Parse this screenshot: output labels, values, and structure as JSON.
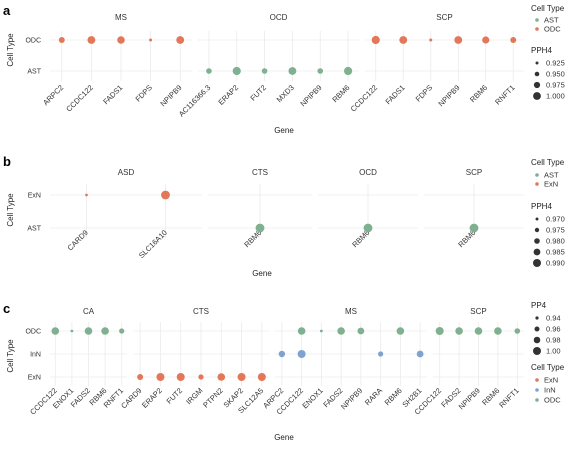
{
  "colors": {
    "AST": "#7fb08f",
    "ODC": "#e2775a",
    "ExN": "#e2775a",
    "InN": "#7ea3d1"
  },
  "chart_data": [
    {
      "panel": "a",
      "type": "scatter",
      "xlabel": "Gene",
      "ylabel": "Cell Type",
      "y_categories": [
        "AST",
        "ODC"
      ],
      "size_legend_title": "PPH4",
      "size_legend_values": [
        "0.925",
        "0.950",
        "0.975",
        "1.000"
      ],
      "size_range": [
        0.9,
        1.0
      ],
      "color_legend_title": "Cell Type",
      "color_legend_entries": [
        "AST",
        "ODC"
      ],
      "facets": [
        {
          "name": "MS",
          "genes": [
            "ARPC2",
            "CCDC122",
            "FADS1",
            "FDPS",
            "NPIPB9"
          ],
          "points": [
            {
              "gene": "ARPC2",
              "cell": "ODC",
              "value": 0.955
            },
            {
              "gene": "CCDC122",
              "cell": "ODC",
              "value": 0.985
            },
            {
              "gene": "FADS1",
              "cell": "ODC",
              "value": 0.98
            },
            {
              "gene": "FDPS",
              "cell": "ODC",
              "value": 0.91
            },
            {
              "gene": "NPIPB9",
              "cell": "ODC",
              "value": 0.985
            }
          ]
        },
        {
          "name": "OCD",
          "genes": [
            "AC116366.3",
            "ERAP2",
            "FUT2",
            "MXD3",
            "NPIPB9",
            "RBM6"
          ],
          "points": [
            {
              "gene": "AC116366.3",
              "cell": "AST",
              "value": 0.95
            },
            {
              "gene": "ERAP2",
              "cell": "AST",
              "value": 0.99
            },
            {
              "gene": "FUT2",
              "cell": "AST",
              "value": 0.95
            },
            {
              "gene": "MXD3",
              "cell": "AST",
              "value": 0.985
            },
            {
              "gene": "NPIPB9",
              "cell": "AST",
              "value": 0.95
            },
            {
              "gene": "RBM6",
              "cell": "AST",
              "value": 0.99
            }
          ]
        },
        {
          "name": "SCP",
          "genes": [
            "CCDC122",
            "FADS1",
            "FDPS",
            "NPIPB9",
            "RBM6",
            "RNFT1"
          ],
          "points": [
            {
              "gene": "CCDC122",
              "cell": "ODC",
              "value": 0.99
            },
            {
              "gene": "FADS1",
              "cell": "ODC",
              "value": 0.985
            },
            {
              "gene": "FDPS",
              "cell": "ODC",
              "value": 0.91
            },
            {
              "gene": "NPIPB9",
              "cell": "ODC",
              "value": 0.985
            },
            {
              "gene": "RBM6",
              "cell": "ODC",
              "value": 0.975
            },
            {
              "gene": "RNFT1",
              "cell": "ODC",
              "value": 0.955
            }
          ]
        }
      ]
    },
    {
      "panel": "b",
      "type": "scatter",
      "xlabel": "Gene",
      "ylabel": "Cell Type",
      "y_categories": [
        "AST",
        "ExN"
      ],
      "size_legend_title": "PPH4",
      "size_legend_values": [
        "0.970",
        "0.975",
        "0.980",
        "0.985",
        "0.990"
      ],
      "size_range": [
        0.965,
        0.99
      ],
      "color_legend_title": "Cell Type",
      "color_legend_entries": [
        "AST",
        "ExN"
      ],
      "facets": [
        {
          "name": "ASD",
          "genes": [
            "CARD9",
            "SLC16A10"
          ],
          "points": [
            {
              "gene": "CARD9",
              "cell": "ExN",
              "value": 0.966
            },
            {
              "gene": "SLC16A10",
              "cell": "ExN",
              "value": 0.99
            }
          ]
        },
        {
          "name": "CTS",
          "genes": [
            "RBM6"
          ],
          "points": [
            {
              "gene": "RBM6",
              "cell": "AST",
              "value": 0.99
            }
          ]
        },
        {
          "name": "OCD",
          "genes": [
            "RBM6"
          ],
          "points": [
            {
              "gene": "RBM6",
              "cell": "AST",
              "value": 0.99
            }
          ]
        },
        {
          "name": "SCP",
          "genes": [
            "RBM6"
          ],
          "points": [
            {
              "gene": "RBM6",
              "cell": "AST",
              "value": 0.99
            }
          ]
        }
      ]
    },
    {
      "panel": "c",
      "type": "scatter",
      "xlabel": "Gene",
      "ylabel": "Cell Type",
      "y_categories": [
        "ExN",
        "InN",
        "ODC"
      ],
      "size_legend_title": "PP4",
      "size_legend_values": [
        "0.94",
        "0.96",
        "0.98",
        "1.00"
      ],
      "size_range": [
        0.92,
        1.0
      ],
      "color_legend_title": "Cell Type",
      "color_legend_entries": [
        "ExN",
        "InN",
        "ODC"
      ],
      "facets": [
        {
          "name": "CA",
          "genes": [
            "CCDC122",
            "ENOX1",
            "FADS2",
            "RBM6",
            "RNFT1"
          ],
          "points": [
            {
              "gene": "CCDC122",
              "cell": "ODC",
              "value": 0.985
            },
            {
              "gene": "ENOX1",
              "cell": "ODC",
              "value": 0.925
            },
            {
              "gene": "FADS2",
              "cell": "ODC",
              "value": 0.985
            },
            {
              "gene": "RBM6",
              "cell": "ODC",
              "value": 0.985
            },
            {
              "gene": "RNFT1",
              "cell": "ODC",
              "value": 0.955
            }
          ]
        },
        {
          "name": "CTS",
          "genes": [
            "CARD9",
            "ERAP2",
            "FUT2",
            "IRGM",
            "PTPN2",
            "SKAP2",
            "SLC12A5"
          ],
          "points": [
            {
              "gene": "CARD9",
              "cell": "ExN",
              "value": 0.965
            },
            {
              "gene": "ERAP2",
              "cell": "ExN",
              "value": 0.99
            },
            {
              "gene": "FUT2",
              "cell": "ExN",
              "value": 0.99
            },
            {
              "gene": "IRGM",
              "cell": "ExN",
              "value": 0.955
            },
            {
              "gene": "PTPN2",
              "cell": "ExN",
              "value": 0.985
            },
            {
              "gene": "SKAP2",
              "cell": "ExN",
              "value": 0.99
            },
            {
              "gene": "SLC12A5",
              "cell": "ExN",
              "value": 0.99
            }
          ]
        },
        {
          "name": "MS",
          "genes": [
            "ARPC2",
            "CCDC122",
            "ENOX1",
            "FADS2",
            "NPIPB9",
            "RARA",
            "RBM6",
            "SH2B1"
          ],
          "points": [
            {
              "gene": "ARPC2",
              "cell": "InN",
              "value": 0.97
            },
            {
              "gene": "CCDC122",
              "cell": "InN",
              "value": 0.99
            },
            {
              "gene": "CCDC122",
              "cell": "ODC",
              "value": 0.985
            },
            {
              "gene": "ENOX1",
              "cell": "ODC",
              "value": 0.925
            },
            {
              "gene": "FADS2",
              "cell": "ODC",
              "value": 0.985
            },
            {
              "gene": "NPIPB9",
              "cell": "ODC",
              "value": 0.975
            },
            {
              "gene": "RARA",
              "cell": "InN",
              "value": 0.955
            },
            {
              "gene": "RBM6",
              "cell": "ODC",
              "value": 0.985
            },
            {
              "gene": "SH2B1",
              "cell": "InN",
              "value": 0.975
            }
          ]
        },
        {
          "name": "SCP",
          "genes": [
            "CCDC122",
            "FADS2",
            "NPIPB9",
            "RBM6",
            "RNFT1"
          ],
          "points": [
            {
              "gene": "CCDC122",
              "cell": "ODC",
              "value": 0.99
            },
            {
              "gene": "FADS2",
              "cell": "ODC",
              "value": 0.985
            },
            {
              "gene": "NPIPB9",
              "cell": "ODC",
              "value": 0.985
            },
            {
              "gene": "RBM6",
              "cell": "ODC",
              "value": 0.985
            },
            {
              "gene": "RNFT1",
              "cell": "ODC",
              "value": 0.96
            }
          ]
        }
      ]
    }
  ]
}
